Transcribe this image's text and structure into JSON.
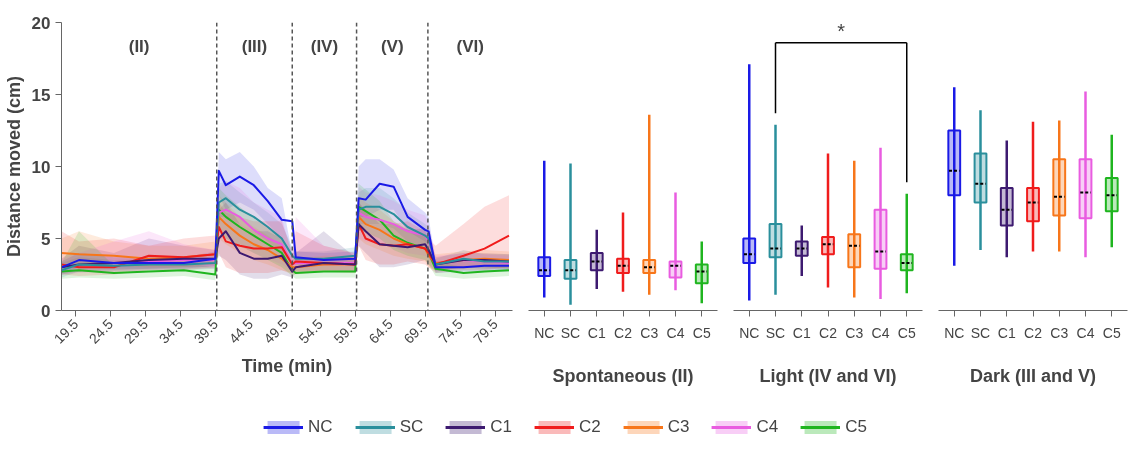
{
  "chart_data": [
    {
      "type": "line",
      "xlabel": "Time (min)",
      "ylabel": "Distance moved (cm)",
      "xlim": [
        17.5,
        82
      ],
      "ylim": [
        0,
        20
      ],
      "xticks": [
        19.5,
        24.5,
        29.5,
        34.5,
        39.5,
        44.5,
        49.5,
        54.5,
        59.5,
        64.5,
        69.5,
        74.5,
        79.5
      ],
      "yticks": [
        0,
        5,
        10,
        15,
        20
      ],
      "grid": false,
      "legend": "bottom",
      "marker": "none",
      "line_style": "solid",
      "x": [
        17.5,
        20,
        25,
        30,
        35,
        39.5,
        40,
        41,
        43,
        45,
        47,
        49,
        50.5,
        51,
        55,
        59.5,
        60,
        61,
        63,
        65,
        67,
        69.5,
        70,
        71,
        75,
        78,
        81.5
      ],
      "series": [
        {
          "name": "NC",
          "color": "#1a1ae6",
          "values": [
            3.0,
            3.5,
            3.3,
            3.3,
            3.3,
            3.6,
            9.7,
            8.7,
            9.3,
            8.7,
            7.6,
            6.3,
            6.2,
            3.7,
            3.5,
            3.6,
            7.8,
            7.7,
            8.8,
            8.6,
            6.5,
            5.6,
            5.5,
            3.0,
            3.0,
            3.1,
            3.1
          ],
          "lower": [
            2.6,
            3.0,
            2.9,
            2.9,
            2.9,
            3.1,
            8.0,
            7.0,
            7.5,
            7.0,
            6.0,
            5.0,
            3.2,
            3.2,
            3.1,
            3.2,
            6.5,
            6.5,
            7.0,
            7.0,
            5.5,
            4.8,
            4.6,
            2.6,
            2.7,
            2.7,
            2.7
          ],
          "upper": [
            3.4,
            4.0,
            3.7,
            3.7,
            3.7,
            4.1,
            11.0,
            10.5,
            11.0,
            10.0,
            8.5,
            7.8,
            3.9,
            4.1,
            4.0,
            4.1,
            10.0,
            10.5,
            10.5,
            9.8,
            7.8,
            6.8,
            6.5,
            3.4,
            3.4,
            3.5,
            3.5
          ]
        },
        {
          "name": "SC",
          "color": "#2a8f9c",
          "values": [
            2.8,
            3.2,
            3.1,
            3.2,
            3.2,
            3.3,
            7.5,
            7.8,
            7.0,
            6.5,
            5.8,
            5.0,
            3.8,
            3.6,
            3.6,
            3.8,
            7.0,
            7.2,
            7.2,
            6.7,
            5.8,
            5.2,
            5.0,
            3.2,
            3.6,
            3.4,
            3.4
          ],
          "lower": [
            2.3,
            2.7,
            2.7,
            2.8,
            2.8,
            2.9,
            6.5,
            6.5,
            6.0,
            5.5,
            4.8,
            4.0,
            3.2,
            3.1,
            3.1,
            3.2,
            6.0,
            6.0,
            6.0,
            5.7,
            4.8,
            4.4,
            4.2,
            2.8,
            3.0,
            2.9,
            2.9
          ],
          "upper": [
            3.3,
            3.7,
            3.5,
            3.6,
            3.6,
            3.7,
            8.8,
            9.0,
            8.2,
            7.5,
            6.8,
            6.0,
            4.4,
            4.1,
            4.1,
            4.4,
            8.2,
            8.5,
            8.5,
            7.8,
            6.8,
            6.0,
            5.8,
            3.6,
            4.2,
            3.9,
            3.9
          ]
        },
        {
          "name": "C1",
          "color": "#3d1a70",
          "values": [
            3.0,
            3.2,
            3.3,
            3.5,
            3.6,
            3.6,
            5.0,
            5.5,
            4.0,
            3.6,
            3.6,
            3.8,
            2.7,
            3.0,
            3.3,
            3.2,
            6.0,
            5.5,
            4.6,
            4.5,
            4.4,
            4.6,
            4.2,
            3.2,
            3.5,
            3.5,
            3.4
          ],
          "lower": [
            2.5,
            2.7,
            2.8,
            2.9,
            3.0,
            3.0,
            3.8,
            3.5,
            2.5,
            2.2,
            2.2,
            2.5,
            2.3,
            2.6,
            2.8,
            2.7,
            4.5,
            4.0,
            3.0,
            3.0,
            3.2,
            3.5,
            3.2,
            2.7,
            3.0,
            3.0,
            2.9
          ],
          "upper": [
            3.6,
            4.5,
            4.0,
            5.0,
            4.5,
            4.2,
            7.0,
            7.5,
            6.0,
            5.5,
            5.5,
            5.0,
            3.2,
            4.0,
            5.5,
            3.7,
            7.5,
            7.0,
            6.0,
            6.0,
            5.6,
            5.7,
            5.2,
            3.7,
            4.0,
            4.0,
            3.9
          ]
        },
        {
          "name": "C2",
          "color": "#f01c1c",
          "values": [
            3.2,
            3.0,
            3.0,
            3.8,
            3.7,
            3.9,
            5.8,
            4.8,
            4.5,
            4.3,
            4.3,
            4.4,
            3.2,
            3.4,
            3.3,
            3.2,
            6.0,
            5.0,
            4.6,
            4.5,
            4.6,
            4.3,
            4.0,
            3.2,
            3.8,
            4.3,
            5.2
          ],
          "lower": [
            2.5,
            2.4,
            2.5,
            2.8,
            2.8,
            3.0,
            4.0,
            3.0,
            2.6,
            2.6,
            2.6,
            2.8,
            2.6,
            2.7,
            2.7,
            2.6,
            4.5,
            3.5,
            3.2,
            3.2,
            3.4,
            3.2,
            3.0,
            2.6,
            2.8,
            2.8,
            3.0
          ],
          "upper": [
            5.5,
            4.8,
            5.0,
            4.5,
            5.0,
            5.2,
            7.5,
            6.8,
            6.5,
            6.2,
            6.2,
            6.2,
            4.0,
            5.5,
            4.5,
            4.0,
            7.5,
            6.8,
            6.2,
            6.0,
            6.2,
            5.5,
            5.0,
            4.5,
            6.0,
            7.2,
            8.0
          ]
        },
        {
          "name": "C3",
          "color": "#f7761a",
          "values": [
            4.0,
            3.9,
            3.8,
            3.6,
            3.7,
            3.9,
            6.5,
            6.0,
            5.2,
            4.6,
            4.2,
            3.6,
            3.0,
            3.0,
            3.2,
            3.2,
            6.5,
            6.0,
            5.6,
            5.0,
            4.6,
            4.3,
            3.8,
            3.3,
            3.5,
            3.6,
            3.5
          ],
          "lower": [
            3.3,
            3.2,
            3.1,
            3.0,
            3.0,
            3.2,
            5.0,
            4.6,
            4.0,
            3.5,
            3.2,
            2.8,
            2.5,
            2.5,
            2.7,
            2.7,
            5.0,
            4.6,
            4.2,
            3.8,
            3.6,
            3.4,
            3.0,
            2.8,
            2.9,
            3.0,
            2.9
          ],
          "upper": [
            5.0,
            5.5,
            4.8,
            4.5,
            4.5,
            4.8,
            8.0,
            7.5,
            6.5,
            5.8,
            5.2,
            4.5,
            3.6,
            3.6,
            3.8,
            3.8,
            8.0,
            7.5,
            7.0,
            6.2,
            5.6,
            5.2,
            4.6,
            3.9,
            4.1,
            4.2,
            4.1
          ]
        },
        {
          "name": "C4",
          "color": "#e95ce0",
          "values": [
            null,
            null,
            3.3,
            3.4,
            3.5,
            3.5,
            6.8,
            7.0,
            6.5,
            5.6,
            5.0,
            4.6,
            3.2,
            3.3,
            3.3,
            3.3,
            6.8,
            6.5,
            6.3,
            6.0,
            5.5,
            5.2,
            4.8,
            3.3,
            3.5,
            3.4,
            3.3
          ],
          "lower": [
            2.5,
            2.6,
            2.7,
            2.8,
            2.9,
            2.9,
            5.0,
            5.0,
            4.5,
            4.0,
            3.6,
            3.2,
            2.7,
            2.8,
            2.8,
            2.8,
            5.0,
            4.8,
            4.6,
            4.4,
            4.0,
            3.8,
            3.6,
            2.8,
            3.0,
            2.9,
            2.8
          ],
          "upper": [
            3.6,
            4.0,
            4.8,
            5.5,
            4.6,
            4.2,
            8.5,
            9.0,
            8.5,
            7.5,
            7.0,
            6.5,
            3.8,
            6.5,
            4.5,
            3.9,
            8.6,
            8.2,
            8.0,
            7.6,
            7.0,
            6.6,
            6.0,
            3.8,
            4.0,
            3.9,
            3.8
          ]
        },
        {
          "name": "C5",
          "color": "#1fb51f",
          "values": [
            2.7,
            2.8,
            2.6,
            2.7,
            2.8,
            2.5,
            7.0,
            6.5,
            5.8,
            5.2,
            4.6,
            4.0,
            2.8,
            2.6,
            2.7,
            2.7,
            7.2,
            6.9,
            6.3,
            5.2,
            4.7,
            4.3,
            4.0,
            2.9,
            2.6,
            2.7,
            2.8
          ],
          "lower": [
            2.2,
            2.3,
            2.2,
            2.3,
            2.4,
            2.1,
            5.5,
            5.0,
            4.5,
            4.0,
            3.5,
            3.0,
            2.4,
            2.2,
            2.3,
            2.3,
            5.6,
            5.4,
            5.0,
            4.2,
            3.8,
            3.5,
            3.2,
            2.4,
            2.2,
            2.3,
            2.4
          ],
          "upper": [
            3.3,
            5.5,
            3.1,
            3.2,
            3.3,
            3.0,
            8.5,
            8.0,
            7.2,
            6.4,
            5.7,
            5.0,
            3.2,
            3.0,
            3.1,
            3.1,
            8.8,
            8.4,
            7.6,
            6.2,
            5.6,
            5.1,
            4.8,
            3.4,
            3.0,
            3.1,
            3.2
          ]
        }
      ],
      "ref_lines": [
        {
          "axis": "x",
          "value": 39.7,
          "color": "#555555",
          "line_style": "dashed"
        },
        {
          "axis": "x",
          "value": 50.5,
          "color": "#555555",
          "line_style": "dashed"
        },
        {
          "axis": "x",
          "value": 59.7,
          "color": "#555555",
          "line_style": "dashed"
        },
        {
          "axis": "x",
          "value": 69.9,
          "color": "#555555",
          "line_style": "dashed"
        }
      ],
      "annotations": [
        "(II)",
        "(III)",
        "(IV)",
        "(V)",
        "(VI)"
      ]
    },
    {
      "type": "box",
      "xlabel": "Spontaneous (II)",
      "ylim": [
        0,
        20
      ],
      "tick_labels": "x",
      "categories": [
        "NC",
        "SC",
        "C1",
        "C2",
        "C3",
        "C4",
        "C5"
      ],
      "colors": [
        "#1a1ae6",
        "#2a8f9c",
        "#3d1a70",
        "#f01c1c",
        "#f7761a",
        "#e95ce0",
        "#1fb51f"
      ],
      "boxes": [
        {
          "low": 0.9,
          "q1": 2.4,
          "median": 2.8,
          "q3": 3.7,
          "high": 10.4
        },
        {
          "low": 0.4,
          "q1": 2.2,
          "median": 2.8,
          "q3": 3.5,
          "high": 10.2
        },
        {
          "low": 1.5,
          "q1": 2.8,
          "median": 3.4,
          "q3": 4.0,
          "high": 5.6
        },
        {
          "low": 1.3,
          "q1": 2.6,
          "median": 3.1,
          "q3": 3.6,
          "high": 6.8
        },
        {
          "low": 1.1,
          "q1": 2.6,
          "median": 3.0,
          "q3": 3.5,
          "high": 13.6
        },
        {
          "low": 1.4,
          "q1": 2.3,
          "median": 3.1,
          "q3": 3.4,
          "high": 8.2
        },
        {
          "low": 0.5,
          "q1": 1.9,
          "median": 2.7,
          "q3": 3.2,
          "high": 4.8
        }
      ]
    },
    {
      "type": "box",
      "xlabel": "Light (IV and VI)",
      "ylim": [
        0,
        20
      ],
      "tick_labels": "x",
      "categories": [
        "NC",
        "SC",
        "C1",
        "C2",
        "C3",
        "C4",
        "C5"
      ],
      "colors": [
        "#1a1ae6",
        "#2a8f9c",
        "#3d1a70",
        "#f01c1c",
        "#f7761a",
        "#e95ce0",
        "#1fb51f"
      ],
      "boxes": [
        {
          "low": 0.7,
          "q1": 3.3,
          "median": 3.9,
          "q3": 5.0,
          "high": 17.1
        },
        {
          "low": 1.1,
          "q1": 3.7,
          "median": 4.3,
          "q3": 6.0,
          "high": 12.9
        },
        {
          "low": 2.4,
          "q1": 3.8,
          "median": 4.3,
          "q3": 4.8,
          "high": 5.9
        },
        {
          "low": 1.6,
          "q1": 3.9,
          "median": 4.6,
          "q3": 5.1,
          "high": 10.9
        },
        {
          "low": 0.9,
          "q1": 3.0,
          "median": 4.5,
          "q3": 5.3,
          "high": 10.4
        },
        {
          "low": 0.8,
          "q1": 2.9,
          "median": 4.1,
          "q3": 7.0,
          "high": 11.3
        },
        {
          "low": 1.2,
          "q1": 2.8,
          "median": 3.3,
          "q3": 3.9,
          "high": 8.1
        }
      ],
      "annotations": [
        "*"
      ]
    },
    {
      "type": "box",
      "xlabel": "Dark (III and V)",
      "ylim": [
        0,
        20
      ],
      "tick_labels": "x",
      "categories": [
        "NC",
        "SC",
        "C1",
        "C2",
        "C3",
        "C4",
        "C5"
      ],
      "colors": [
        "#1a1ae6",
        "#2a8f9c",
        "#3d1a70",
        "#f01c1c",
        "#f7761a",
        "#e95ce0",
        "#1fb51f"
      ],
      "boxes": [
        {
          "low": 3.1,
          "q1": 8.0,
          "median": 9.7,
          "q3": 12.5,
          "high": 15.5
        },
        {
          "low": 4.2,
          "q1": 7.5,
          "median": 8.8,
          "q3": 10.9,
          "high": 13.9
        },
        {
          "low": 3.7,
          "q1": 5.9,
          "median": 7.0,
          "q3": 8.5,
          "high": 11.8
        },
        {
          "low": 4.1,
          "q1": 6.2,
          "median": 7.5,
          "q3": 8.5,
          "high": 13.1
        },
        {
          "low": 4.1,
          "q1": 6.6,
          "median": 7.9,
          "q3": 10.5,
          "high": 13.2
        },
        {
          "low": 3.7,
          "q1": 6.4,
          "median": 8.2,
          "q3": 10.5,
          "high": 15.2
        },
        {
          "low": 4.4,
          "q1": 6.9,
          "median": 8.0,
          "q3": 9.2,
          "high": 12.2
        }
      ]
    }
  ]
}
